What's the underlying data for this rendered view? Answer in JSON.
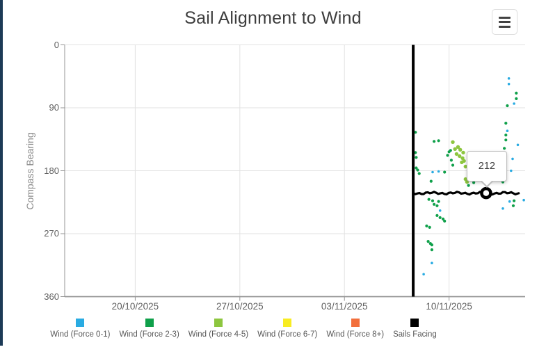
{
  "header": {
    "title": "Sail Alignment to Wind",
    "menu_icon": "hamburger-menu-icon"
  },
  "colors": {
    "panel_edge": "#1c3a56",
    "grid": "#e2e2e2",
    "axis": "#949494",
    "tick_text": "#5f5f5f",
    "axis_label_text": "#8a8a8a"
  },
  "chart_data": {
    "type": "scatter",
    "title": "Sail Alignment to Wind",
    "xlabel": "",
    "ylabel": "Compass Bearing",
    "x_axis": {
      "note": "x measured in days relative to 20/10/2025",
      "tick_labels": [
        "20/10/2025",
        "27/10/2025",
        "03/11/2025",
        "10/11/2025"
      ],
      "tick_days": [
        0,
        7,
        14,
        21
      ],
      "range_days": [
        -4.72,
        26.09
      ],
      "grid": true
    },
    "y_axis": {
      "label": "Compass Bearing",
      "ticks": [
        0,
        90,
        180,
        270,
        360
      ],
      "range": [
        0,
        360
      ],
      "inverted": true,
      "grid": true
    },
    "legend_position": "bottom",
    "series": [
      {
        "name": "Wind (Force 0-1)",
        "color": "#29abe2",
        "type": "scatter",
        "marker_radius": 1.8,
        "points": [
          [
            25.0,
            48
          ],
          [
            25.0,
            56
          ],
          [
            25.35,
            84
          ],
          [
            24.9,
            123
          ],
          [
            25.6,
            143
          ],
          [
            25.25,
            163
          ],
          [
            25.15,
            180
          ],
          [
            19.9,
            182
          ],
          [
            20.3,
            181
          ],
          [
            20.4,
            237
          ],
          [
            24.6,
            234
          ],
          [
            19.85,
            312
          ],
          [
            19.3,
            328
          ],
          [
            25.05,
            224
          ],
          [
            26.0,
            222
          ]
        ]
      },
      {
        "name": "Wind (Force 2-3)",
        "color": "#0fa04a",
        "type": "scatter",
        "marker_radius": 2.1,
        "points": [
          [
            25.5,
            69
          ],
          [
            25.5,
            77
          ],
          [
            24.9,
            87
          ],
          [
            24.8,
            112
          ],
          [
            24.8,
            129
          ],
          [
            24.8,
            136
          ],
          [
            24.7,
            148
          ],
          [
            24.6,
            196
          ],
          [
            25.35,
            223
          ],
          [
            25.3,
            230
          ],
          [
            18.75,
            125
          ],
          [
            18.75,
            154
          ],
          [
            18.8,
            161
          ],
          [
            18.8,
            176
          ],
          [
            18.9,
            179
          ],
          [
            19.0,
            184
          ],
          [
            20.7,
            182
          ],
          [
            20.9,
            158
          ],
          [
            21.0,
            153
          ],
          [
            21.1,
            151
          ],
          [
            21.15,
            165
          ],
          [
            21.25,
            172
          ],
          [
            19.8,
            195
          ],
          [
            20.0,
            138
          ],
          [
            20.3,
            137
          ],
          [
            24.5,
            191
          ],
          [
            19.65,
            221
          ],
          [
            19.9,
            223
          ],
          [
            20.0,
            228
          ],
          [
            20.2,
            230
          ],
          [
            20.3,
            224
          ],
          [
            20.2,
            244
          ],
          [
            20.4,
            247
          ],
          [
            20.6,
            249
          ],
          [
            20.7,
            252
          ],
          [
            19.5,
            259
          ],
          [
            19.7,
            261
          ],
          [
            19.6,
            281
          ],
          [
            19.75,
            284
          ],
          [
            19.85,
            286
          ],
          [
            19.85,
            293
          ],
          [
            22.3,
            201
          ],
          [
            22.65,
            197
          ]
        ]
      },
      {
        "name": "Wind (Force 4-5)",
        "color": "#8dc63f",
        "type": "scatter",
        "marker_radius": 2.7,
        "points": [
          [
            21.25,
            139
          ],
          [
            21.4,
            149
          ],
          [
            21.6,
            146
          ],
          [
            21.75,
            150
          ],
          [
            21.95,
            154
          ],
          [
            21.5,
            156
          ],
          [
            21.7,
            159
          ],
          [
            21.9,
            162
          ],
          [
            22.0,
            166
          ],
          [
            21.85,
            168
          ],
          [
            22.1,
            174
          ],
          [
            22.1,
            192
          ],
          [
            22.2,
            196
          ]
        ]
      },
      {
        "name": "Wind (Force 6-7)",
        "color": "#f8ec22",
        "type": "scatter",
        "marker_radius": 2.1,
        "points": []
      },
      {
        "name": "Wind (Force 8+)",
        "color": "#f26f3c",
        "type": "scatter",
        "marker_radius": 2.1,
        "points": []
      },
      {
        "name": "Sails Facing",
        "color": "#000000",
        "type": "line",
        "vertical_jump_day": 18.6,
        "vertical_span_bearing": [
          0,
          360
        ],
        "level_bearing": 212,
        "level_from_day": 18.62,
        "level_to_day": 25.85
      }
    ],
    "tooltip": {
      "value": "212",
      "anchor_day": 23.48,
      "anchor_bearing": 212
    }
  }
}
